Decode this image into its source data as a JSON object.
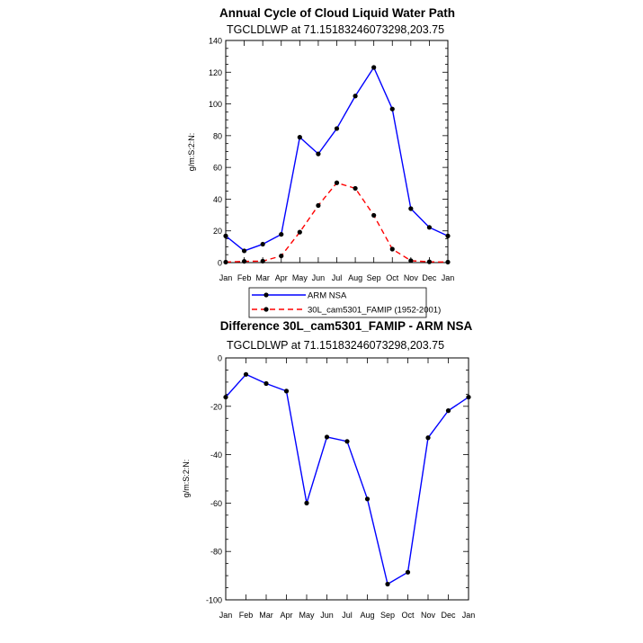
{
  "chart_data": [
    {
      "type": "line",
      "title": "Annual Cycle of Cloud Liquid Water Path",
      "subtitle": "TGCLDLWP at 71.15183246073298,203.75",
      "xlabel": "",
      "ylabel": "g/m:S:2:N:",
      "categories": [
        "Jan",
        "Feb",
        "Mar",
        "Apr",
        "May",
        "Jun",
        "Jul",
        "Aug",
        "Sep",
        "Oct",
        "Nov",
        "Dec",
        "Jan"
      ],
      "ylim": [
        0,
        140
      ],
      "yticks": [
        0,
        20,
        40,
        60,
        80,
        100,
        120,
        140
      ],
      "grid": false,
      "legend_position": "bottom-left",
      "series": [
        {
          "name": "ARM NSA",
          "color": "#0000ff",
          "dash": "solid",
          "values": [
            16.8,
            7.4,
            11.6,
            17.8,
            79.0,
            68.5,
            84.5,
            105.0,
            123.0,
            96.8,
            34.0,
            22.2,
            16.8
          ]
        },
        {
          "name": "30L_cam5301_FAMIP (1952-2001)",
          "color": "#ff0000",
          "dash": "dashed",
          "values": [
            0.3,
            0.8,
            0.9,
            4.2,
            19.2,
            36.0,
            50.3,
            46.8,
            29.8,
            8.5,
            1.2,
            0.5,
            0.3
          ]
        }
      ]
    },
    {
      "type": "line",
      "title": "Difference 30L_cam5301_FAMIP - ARM NSA",
      "subtitle": "TGCLDLWP at 71.15183246073298,203.75",
      "xlabel": "",
      "ylabel": "g/m:S:2:N:",
      "categories": [
        "Jan",
        "Feb",
        "Mar",
        "Apr",
        "May",
        "Jun",
        "Jul",
        "Aug",
        "Sep",
        "Oct",
        "Nov",
        "Dec",
        "Jan"
      ],
      "ylim": [
        -100,
        0
      ],
      "yticks": [
        -100,
        -80,
        -60,
        -40,
        -20,
        0
      ],
      "grid": false,
      "series": [
        {
          "color": "#0000ff",
          "dash": "solid",
          "values": [
            -16.2,
            -6.8,
            -10.6,
            -13.7,
            -60.0,
            -32.7,
            -34.5,
            -58.3,
            -93.5,
            -88.6,
            -33.0,
            -21.8,
            -16.2
          ]
        }
      ]
    }
  ]
}
